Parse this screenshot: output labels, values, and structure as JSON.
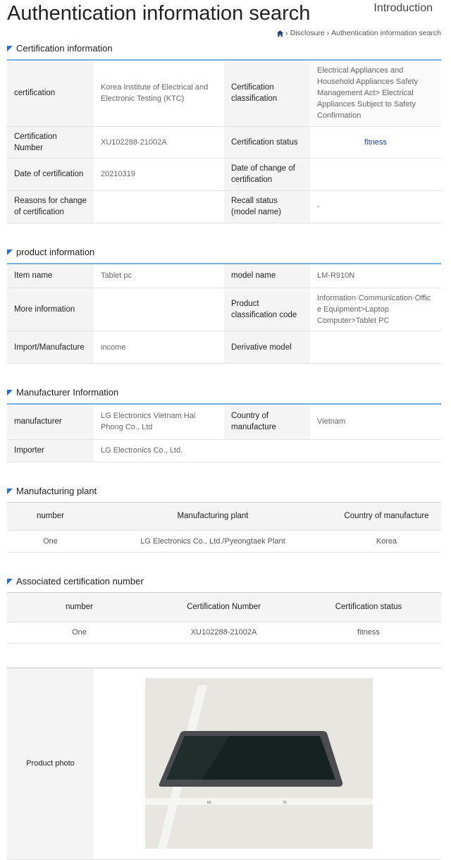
{
  "header": {
    "title": "Authentication information search",
    "section": "Introduction",
    "breadcrumb": [
      "Disclosure",
      "Authentication information search"
    ]
  },
  "certification": {
    "heading": "Certification information",
    "rows": [
      {
        "l1": "certification",
        "v1": "Korea Institute of Electrical and Electronic Testing (KTC)",
        "l2": "Certification classification",
        "v2": "Electrical Appliances and Household Appliances Safety Management Act> Electrical Appliances Subject to Safety Confirmation"
      },
      {
        "l1": "Certification Number",
        "v1": "XU102288-21002A",
        "l2": "Certification status",
        "v2": "fitness"
      },
      {
        "l1": "Date of certification",
        "v1": "20210319",
        "l2": "Date of change of certification",
        "v2": ""
      },
      {
        "l1": "Reasons for change of certification",
        "v1": "",
        "l2": "Recall status (model name)",
        "v2": "-"
      }
    ]
  },
  "product": {
    "heading": "product information",
    "rows": [
      {
        "l1": "Item name",
        "v1": "Tablet pc",
        "l2": "model name",
        "v2": "LM-R910N"
      },
      {
        "l1": "More information",
        "v1": "",
        "l2": "Product classification code",
        "v2": "Information·Communication·Office Equipment>Laptop Computer>Tablet PC"
      },
      {
        "l1": "Import/Manufacture",
        "v1": "income",
        "l2": "Derivative model",
        "v2": ""
      }
    ]
  },
  "manufacturer": {
    "heading": "Manufacturer Information",
    "rows": [
      {
        "l1": "manufacturer",
        "v1": "LG Electronics Vietnam Hai Phong Co., Ltd",
        "l2": "Country of manufacture",
        "v2": "Vietnam"
      },
      {
        "l1": "Importer",
        "v1": "LG Electronics Co., Ltd."
      }
    ]
  },
  "plant": {
    "heading": "Manufacturing plant",
    "columns": [
      "number",
      "Manufacturing plant",
      "Country of manufacture"
    ],
    "rows": [
      [
        "One",
        "LG Electronics Co., Ltd./Pyeongtaek Plant",
        "Korea"
      ]
    ]
  },
  "associated": {
    "heading": "Associated certification number",
    "columns": [
      "number",
      "Certification Number",
      "Certification status"
    ],
    "rows": [
      [
        "One",
        "XU102288-21002A",
        "fitness"
      ]
    ]
  },
  "photo": {
    "label": "Product photo"
  },
  "colors": {
    "accent": "#2a6fc4",
    "status": "#1a3ea8"
  }
}
